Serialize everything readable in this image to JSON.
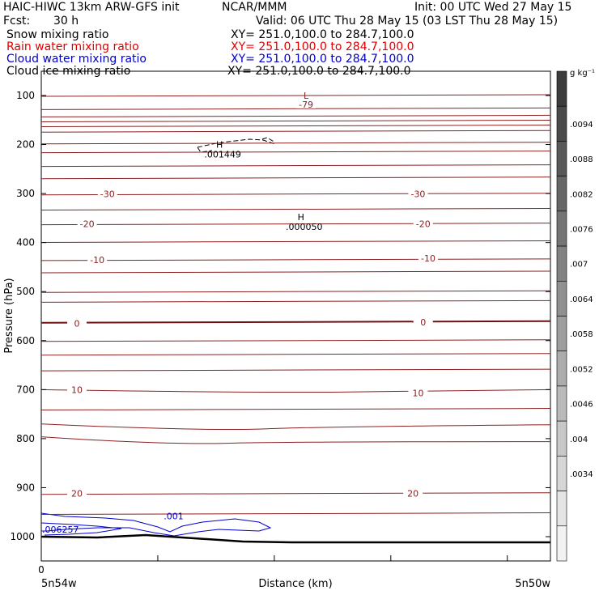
{
  "header": {
    "model_title": "HAIC-HIWC 13km ARW-GFS init",
    "org": "NCAR/MMM",
    "init_text": "Init: 00 UTC Wed 27 May 15",
    "fcst_label": "Fcst:",
    "fcst_value": "30 h",
    "valid_text": "Valid: 06 UTC Thu 28 May 15 (03 LST Thu 28 May 15)",
    "fields": [
      {
        "name": "Snow mixing ratio",
        "xy": "XY= 251.0,100.0 to 284.7,100.0",
        "color": "#000000"
      },
      {
        "name": "Rain water mixing ratio",
        "xy": "XY= 251.0,100.0 to 284.7,100.0",
        "color": "#e00000"
      },
      {
        "name": "Cloud water mixing ratio",
        "xy": "XY= 251.0,100.0 to 284.7,100.0",
        "color": "#0000cc"
      },
      {
        "name": "Cloud ice mixing ratio",
        "xy": "XY= 251.0,100.0 to 284.7,100.0",
        "color": "#000000"
      }
    ]
  },
  "chart_data": {
    "type": "line",
    "xlabel": "Distance (km)",
    "ylabel": "Pressure (hPa)",
    "x_start_label": "5n54w",
    "x_end_label": "5n50w",
    "x_tick_zero": "0",
    "y_ticks": [
      100,
      200,
      300,
      400,
      500,
      600,
      700,
      800,
      900,
      1000
    ],
    "ylim": [
      1050,
      50
    ],
    "y_scale": "linear-pressure",
    "colorbar": {
      "unit": "g kg⁻¹",
      "labels": [
        ".0094",
        ".0088",
        ".0082",
        ".0076",
        ".007",
        ".0064",
        ".0058",
        ".0052",
        ".0046",
        ".004",
        ".0034"
      ],
      "colors": [
        "#3c3c3c",
        "#4a4a4a",
        "#585858",
        "#666666",
        "#747474",
        "#828282",
        "#909090",
        "#9e9e9e",
        "#acacac",
        "#bababa",
        "#c8c8c8",
        "#d6d6d6",
        "#e4e4e4",
        "#f2f2f2"
      ]
    },
    "temperature_contour_labels": [
      {
        "text": "-79",
        "x": 0.52,
        "p": 118
      },
      {
        "text": "-30",
        "x": 0.13,
        "p": 301
      },
      {
        "text": "-30",
        "x": 0.74,
        "p": 301
      },
      {
        "text": "-20",
        "x": 0.09,
        "p": 362
      },
      {
        "text": "-20",
        "x": 0.75,
        "p": 362
      },
      {
        "text": "-10",
        "x": 0.11,
        "p": 435
      },
      {
        "text": "-10",
        "x": 0.76,
        "p": 432
      },
      {
        "text": "0",
        "x": 0.07,
        "p": 565
      },
      {
        "text": "0",
        "x": 0.75,
        "p": 562
      },
      {
        "text": "10",
        "x": 0.07,
        "p": 700
      },
      {
        "text": "10",
        "x": 0.74,
        "p": 707
      },
      {
        "text": "20",
        "x": 0.07,
        "p": 912
      },
      {
        "text": "20",
        "x": 0.73,
        "p": 912
      }
    ],
    "extrema": [
      {
        "label": "L",
        "x": 0.52,
        "p": 100
      },
      {
        "label": "H",
        "value": ".001449",
        "x": 0.35,
        "p": 200
      },
      {
        "label": "H",
        "value": ".000050",
        "x": 0.51,
        "p": 348
      }
    ],
    "cloud_water_labels": [
      {
        "text": ".001",
        "x": 0.26,
        "p": 958
      },
      {
        "text": ".006257",
        "x": 0.0,
        "p": 985
      }
    ]
  }
}
